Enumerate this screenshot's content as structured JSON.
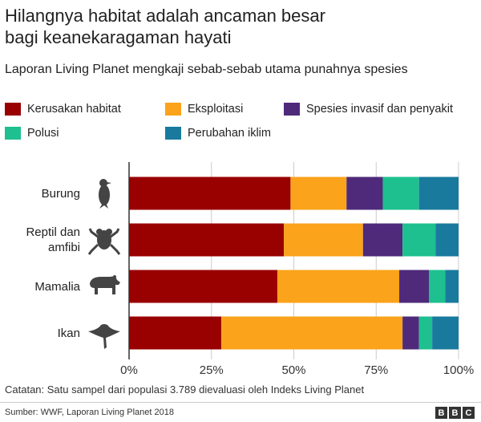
{
  "header": {
    "title_line1": "Hilangnya habitat adalah ancaman besar",
    "title_line2": "bagi keanekaragaman hayati",
    "subtitle": "Laporan Living Planet mengkaji sebab-sebab utama punahnya spesies"
  },
  "footer": {
    "note": "Catatan: Satu sampel dari populasi 3.789 dievaluasi oleh Indeks Living Planet",
    "source": "Sumber: WWF, Laporan Living Planet 2018",
    "logo": [
      "B",
      "B",
      "C"
    ]
  },
  "chart_data": {
    "type": "bar",
    "stacked": true,
    "orientation": "horizontal",
    "title": "Hilangnya habitat adalah ancaman besar bagi keanekaragaman hayati",
    "categories": [
      "Burung",
      "Reptil dan amfibi",
      "Mamalia",
      "Ikan"
    ],
    "category_lines": [
      [
        "Burung"
      ],
      [
        "Reptil dan",
        "amfibi"
      ],
      [
        "Mamalia"
      ],
      [
        "Ikan"
      ]
    ],
    "icons": [
      "bird-icon",
      "frog-icon",
      "bear-icon",
      "manta-ray-icon"
    ],
    "series": [
      {
        "name": "Kerusakan habitat",
        "color": "#990000",
        "values": [
          49,
          47,
          45,
          28
        ]
      },
      {
        "name": "Eksploitasi",
        "color": "#FAA31B",
        "values": [
          17,
          24,
          37,
          55
        ]
      },
      {
        "name": "Spesies invasif dan penyakit",
        "color": "#4F2A7A",
        "values": [
          11,
          12,
          9,
          5
        ]
      },
      {
        "name": "Polusi",
        "color": "#1DC08E",
        "values": [
          11,
          10,
          5,
          4
        ]
      },
      {
        "name": "Perubahan iklim",
        "color": "#1A7A9E",
        "values": [
          12,
          7,
          4,
          8
        ]
      }
    ],
    "xlim": [
      0,
      100
    ],
    "xticks": [
      "0%",
      "25%",
      "50%",
      "75%",
      "100%"
    ],
    "grid": true,
    "legend_placement": "top"
  }
}
